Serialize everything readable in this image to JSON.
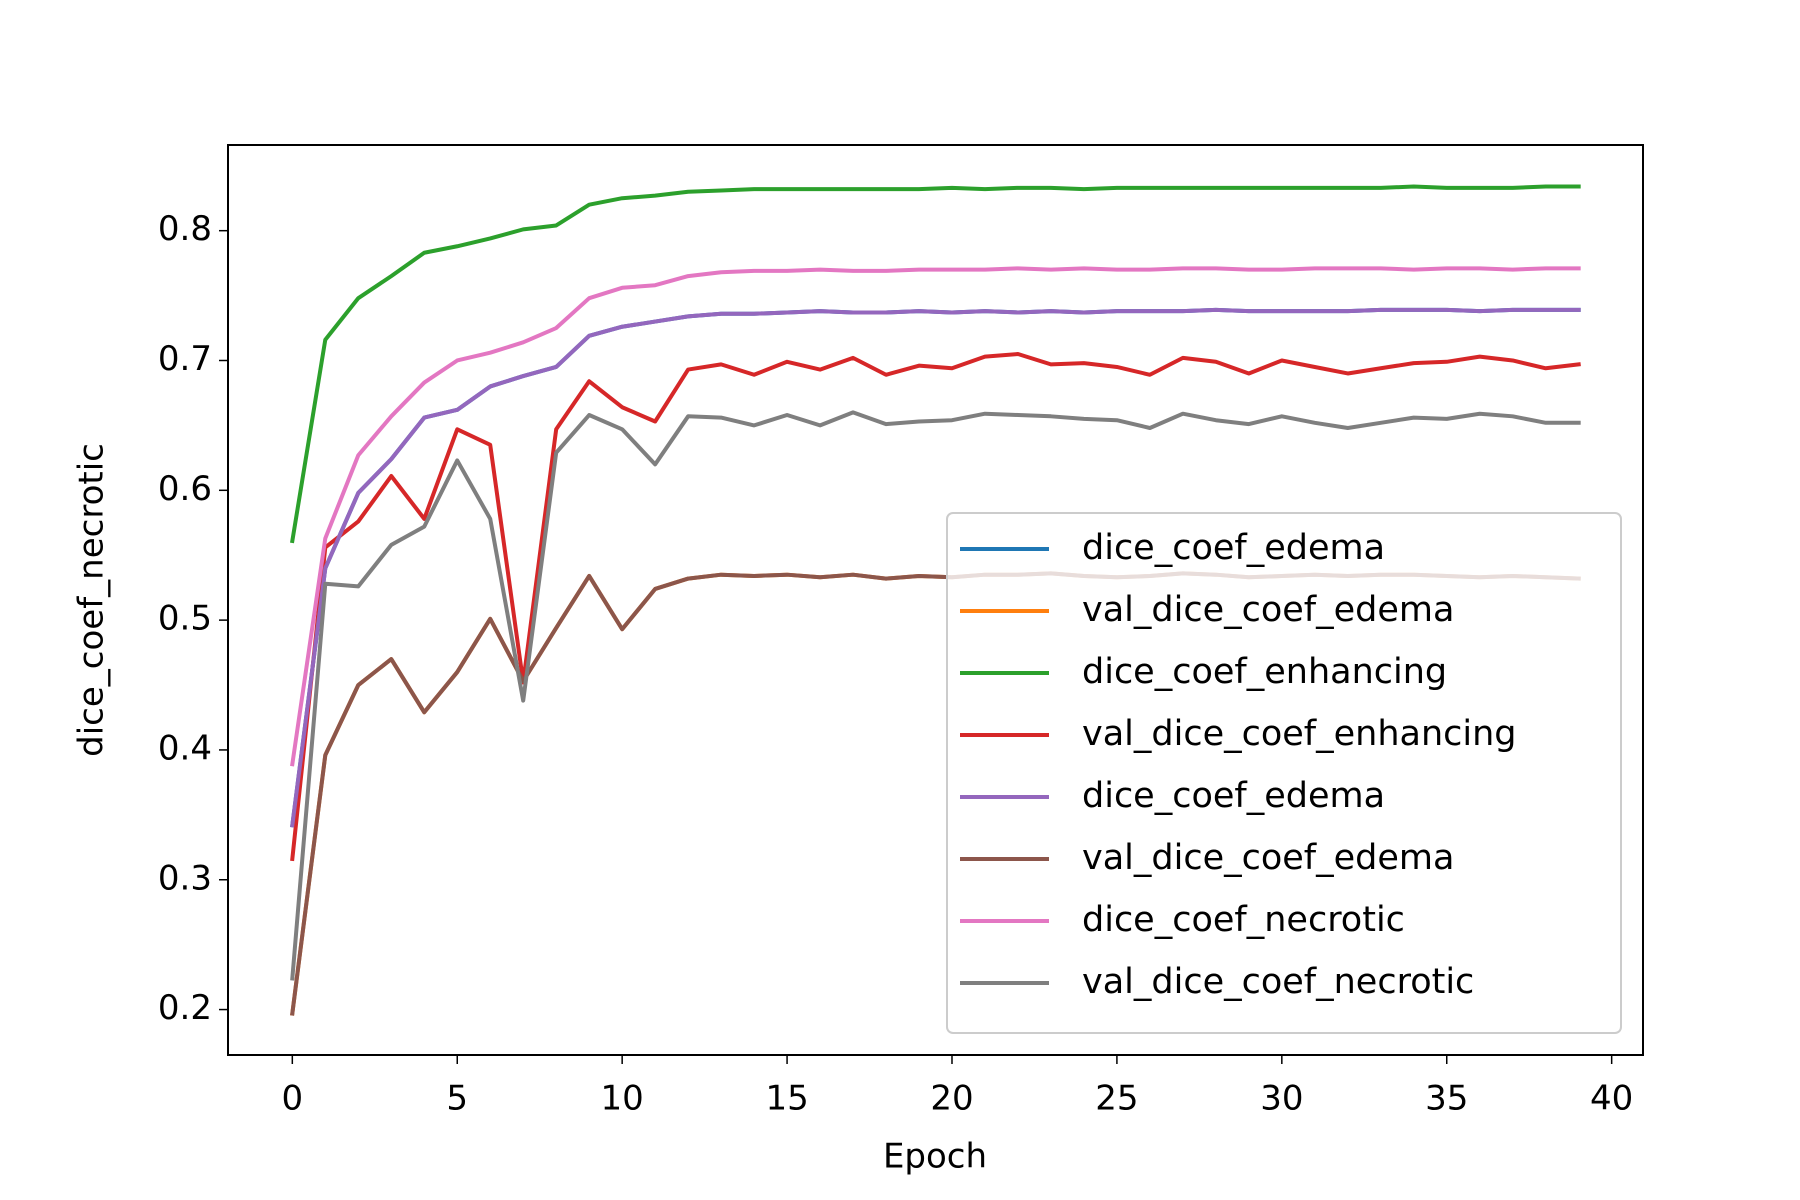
{
  "chart_data": {
    "type": "line",
    "xlabel": "Epoch",
    "ylabel": "dice_coef_necrotic",
    "x": [
      0,
      1,
      2,
      3,
      4,
      5,
      6,
      7,
      8,
      9,
      10,
      11,
      12,
      13,
      14,
      15,
      16,
      17,
      18,
      19,
      20,
      21,
      22,
      23,
      24,
      25,
      26,
      27,
      28,
      29,
      30,
      31,
      32,
      33,
      34,
      35,
      36,
      37,
      38,
      39
    ],
    "xlim": [
      -1.95,
      40.95
    ],
    "xticks": [
      0,
      5,
      10,
      15,
      20,
      25,
      30,
      35,
      40
    ],
    "ylim": [
      0.165,
      0.866
    ],
    "yticks": [
      0.2,
      0.3,
      0.4,
      0.5,
      0.6,
      0.7,
      0.8
    ],
    "legend": "lower right",
    "grid": false,
    "series": [
      {
        "name": "dice_coef_edema",
        "color": "#1f77b4",
        "values": [
          0.342,
          0.54,
          0.598,
          0.624,
          0.656,
          0.662,
          0.68,
          0.688,
          0.695,
          0.719,
          0.726,
          0.73,
          0.734,
          0.736,
          0.736,
          0.737,
          0.738,
          0.737,
          0.737,
          0.738,
          0.737,
          0.738,
          0.737,
          0.738,
          0.737,
          0.738,
          0.738,
          0.738,
          0.739,
          0.738,
          0.738,
          0.738,
          0.738,
          0.739,
          0.739,
          0.739,
          0.738,
          0.739,
          0.739,
          0.739
        ]
      },
      {
        "name": "val_dice_coef_edema",
        "color": "#ff7f0e",
        "values": [
          0.197,
          0.396,
          0.45,
          0.47,
          0.429,
          0.46,
          0.501,
          0.453,
          0.494,
          0.534,
          0.493,
          0.524,
          0.532,
          0.535,
          0.534,
          0.535,
          0.533,
          0.535,
          0.532,
          0.534,
          0.533,
          0.535,
          0.535,
          0.536,
          0.534,
          0.533,
          0.534,
          0.536,
          0.535,
          0.533,
          0.534,
          0.535,
          0.534,
          0.535,
          0.535,
          0.534,
          0.533,
          0.534,
          0.533,
          0.532
        ]
      },
      {
        "name": "dice_coef_enhancing",
        "color": "#2ca02c",
        "values": [
          0.561,
          0.716,
          0.748,
          0.765,
          0.783,
          0.788,
          0.794,
          0.801,
          0.804,
          0.82,
          0.825,
          0.827,
          0.83,
          0.831,
          0.832,
          0.832,
          0.832,
          0.832,
          0.832,
          0.832,
          0.833,
          0.832,
          0.833,
          0.833,
          0.832,
          0.833,
          0.833,
          0.833,
          0.833,
          0.833,
          0.833,
          0.833,
          0.833,
          0.833,
          0.834,
          0.833,
          0.833,
          0.833,
          0.834,
          0.834
        ]
      },
      {
        "name": "val_dice_coef_enhancing",
        "color": "#d62728",
        "values": [
          0.316,
          0.556,
          0.576,
          0.611,
          0.578,
          0.647,
          0.635,
          0.452,
          0.647,
          0.684,
          0.664,
          0.653,
          0.693,
          0.697,
          0.689,
          0.699,
          0.693,
          0.702,
          0.689,
          0.696,
          0.694,
          0.703,
          0.705,
          0.697,
          0.698,
          0.695,
          0.689,
          0.702,
          0.699,
          0.69,
          0.7,
          0.695,
          0.69,
          0.694,
          0.698,
          0.699,
          0.703,
          0.7,
          0.694,
          0.697
        ]
      },
      {
        "name": "dice_coef_edema",
        "color": "#9467bd",
        "values": [
          0.342,
          0.54,
          0.598,
          0.624,
          0.656,
          0.662,
          0.68,
          0.688,
          0.695,
          0.719,
          0.726,
          0.73,
          0.734,
          0.736,
          0.736,
          0.737,
          0.738,
          0.737,
          0.737,
          0.738,
          0.737,
          0.738,
          0.737,
          0.738,
          0.737,
          0.738,
          0.738,
          0.738,
          0.739,
          0.738,
          0.738,
          0.738,
          0.738,
          0.739,
          0.739,
          0.739,
          0.738,
          0.739,
          0.739,
          0.739
        ]
      },
      {
        "name": "val_dice_coef_edema",
        "color": "#8c564b",
        "values": [
          0.197,
          0.396,
          0.45,
          0.47,
          0.429,
          0.46,
          0.501,
          0.453,
          0.494,
          0.534,
          0.493,
          0.524,
          0.532,
          0.535,
          0.534,
          0.535,
          0.533,
          0.535,
          0.532,
          0.534,
          0.533,
          0.535,
          0.535,
          0.536,
          0.534,
          0.533,
          0.534,
          0.536,
          0.535,
          0.533,
          0.534,
          0.535,
          0.534,
          0.535,
          0.535,
          0.534,
          0.533,
          0.534,
          0.533,
          0.532
        ]
      },
      {
        "name": "dice_coef_necrotic",
        "color": "#e377c2",
        "values": [
          0.389,
          0.563,
          0.627,
          0.657,
          0.683,
          0.7,
          0.706,
          0.714,
          0.725,
          0.748,
          0.756,
          0.758,
          0.765,
          0.768,
          0.769,
          0.769,
          0.77,
          0.769,
          0.769,
          0.77,
          0.77,
          0.77,
          0.771,
          0.77,
          0.771,
          0.77,
          0.77,
          0.771,
          0.771,
          0.77,
          0.77,
          0.771,
          0.771,
          0.771,
          0.77,
          0.771,
          0.771,
          0.77,
          0.771,
          0.771
        ]
      },
      {
        "name": "val_dice_coef_necrotic",
        "color": "#7f7f7f",
        "values": [
          0.224,
          0.528,
          0.526,
          0.558,
          0.572,
          0.623,
          0.578,
          0.438,
          0.629,
          0.658,
          0.647,
          0.62,
          0.657,
          0.656,
          0.65,
          0.658,
          0.65,
          0.66,
          0.651,
          0.653,
          0.654,
          0.659,
          0.658,
          0.657,
          0.655,
          0.654,
          0.648,
          0.659,
          0.654,
          0.651,
          0.657,
          0.652,
          0.648,
          0.652,
          0.656,
          0.655,
          0.659,
          0.657,
          0.652,
          0.652
        ]
      }
    ]
  }
}
